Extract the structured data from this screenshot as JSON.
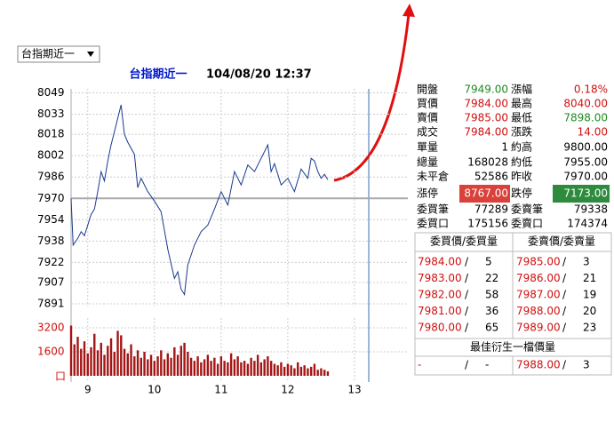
{
  "dropdown": "台指期近一",
  "header": {
    "title": "台指期近一",
    "timestamp": "104/08/20 12:37"
  },
  "chart_data": [
    {
      "type": "line",
      "color": "#1a3a8f",
      "x": [
        8.75,
        8.78,
        8.85,
        8.9,
        8.95,
        9,
        9.05,
        9.1,
        9.15,
        9.2,
        9.25,
        9.3,
        9.35,
        9.4,
        9.45,
        9.5,
        9.55,
        9.6,
        9.7,
        9.75,
        9.8,
        9.9,
        10,
        10.1,
        10.2,
        10.3,
        10.35,
        10.4,
        10.45,
        10.5,
        10.6,
        10.7,
        10.8,
        10.9,
        11,
        11.1,
        11.2,
        11.3,
        11.4,
        11.5,
        11.6,
        11.7,
        11.75,
        11.8,
        11.9,
        12,
        12.1,
        12.2,
        12.3,
        12.35,
        12.4,
        12.45,
        12.5,
        12.55,
        12.6
      ],
      "values": [
        7970,
        7935,
        7940,
        7945,
        7942,
        7950,
        7958,
        7962,
        7975,
        7990,
        7983,
        7998,
        8010,
        8020,
        8030,
        8040,
        8018,
        8012,
        8003,
        7978,
        7985,
        7975,
        7968,
        7960,
        7932,
        7910,
        7915,
        7902,
        7898,
        7920,
        7935,
        7945,
        7950,
        7962,
        7975,
        7965,
        7990,
        7980,
        7995,
        7990,
        8000,
        8010,
        7990,
        7996,
        7980,
        7985,
        7975,
        7992,
        7985,
        8000,
        7998,
        7990,
        7985,
        7988,
        7984
      ],
      "xlim": [
        8.75,
        13.8
      ],
      "xticks": [
        9,
        10,
        11,
        12,
        13
      ],
      "ylim": [
        7889,
        8052
      ],
      "yticks": [
        8049,
        8033,
        8018,
        8002,
        7986,
        7970,
        7954,
        7938,
        7922,
        7907,
        7891
      ],
      "reference": 7970,
      "grid": true
    },
    {
      "type": "bar",
      "color": "#a31515",
      "unit": "口",
      "x": [
        8.75,
        8.8,
        8.85,
        8.9,
        8.95,
        9,
        9.05,
        9.1,
        9.15,
        9.2,
        9.25,
        9.3,
        9.35,
        9.4,
        9.45,
        9.5,
        9.55,
        9.6,
        9.65,
        9.7,
        9.75,
        9.8,
        9.85,
        9.9,
        9.95,
        10,
        10.05,
        10.1,
        10.15,
        10.2,
        10.25,
        10.3,
        10.35,
        10.4,
        10.45,
        10.5,
        10.55,
        10.6,
        10.65,
        10.7,
        10.75,
        10.8,
        10.85,
        10.9,
        10.95,
        11,
        11.05,
        11.1,
        11.15,
        11.2,
        11.25,
        11.3,
        11.35,
        11.4,
        11.45,
        11.5,
        11.55,
        11.6,
        11.65,
        11.7,
        11.75,
        11.8,
        11.85,
        11.9,
        11.95,
        12,
        12.05,
        12.1,
        12.15,
        12.2,
        12.25,
        12.3,
        12.35,
        12.4,
        12.45,
        12.5,
        12.55,
        12.6
      ],
      "values": [
        3350,
        2100,
        2600,
        1800,
        2300,
        1500,
        1900,
        2800,
        1700,
        2200,
        1400,
        2000,
        2500,
        1600,
        3000,
        2700,
        1800,
        1500,
        2100,
        1300,
        1700,
        1200,
        1600,
        1100,
        1400,
        1000,
        1300,
        1700,
        1100,
        1500,
        1200,
        1900,
        1400,
        2000,
        2200,
        1600,
        1200,
        1000,
        1300,
        900,
        1100,
        1400,
        1000,
        1200,
        800,
        1300,
        1000,
        900,
        1500,
        1100,
        1300,
        900,
        1000,
        800,
        1200,
        1000,
        1400,
        900,
        1100,
        1300,
        1000,
        800,
        700,
        900,
        600,
        800,
        700,
        500,
        900,
        600,
        700,
        500,
        600,
        800,
        400,
        500,
        400,
        300
      ],
      "xlim": [
        8.75,
        13.8
      ],
      "xticks": [
        9,
        10,
        11,
        12,
        13
      ],
      "ylim": [
        0,
        3850
      ],
      "yticks": [
        3200,
        1600
      ]
    }
  ],
  "quote": {
    "rows": [
      [
        "開盤",
        "7949.00",
        "漲幅",
        "0.18%"
      ],
      [
        "買價",
        "7984.00",
        "最高",
        "8040.00"
      ],
      [
        "賣價",
        "7985.00",
        "最低",
        "7898.00"
      ],
      [
        "成交",
        "7984.00",
        "漲跌",
        "14.00"
      ],
      [
        "單量",
        "1",
        "約高",
        "9800.00"
      ],
      [
        "總量",
        "168028",
        "約低",
        "7955.00"
      ],
      [
        "未平倉",
        "52586",
        "昨收",
        "7970.00"
      ],
      [
        "漲停",
        "8767.00",
        "跌停",
        "7173.00"
      ],
      [
        "委買筆",
        "77289",
        "委賣筆",
        "79338"
      ],
      [
        "委買口",
        "175156",
        "委賣口",
        "174374"
      ]
    ]
  },
  "order_book": {
    "headers": [
      "委買價/委買量",
      "委賣價/委賣量"
    ],
    "separator": "/",
    "rows": [
      [
        "7984.00",
        "5",
        "7985.00",
        "3"
      ],
      [
        "7983.00",
        "22",
        "7986.00",
        "21"
      ],
      [
        "7982.00",
        "58",
        "7987.00",
        "19"
      ],
      [
        "7981.00",
        "36",
        "7988.00",
        "20"
      ],
      [
        "7980.00",
        "65",
        "7989.00",
        "23"
      ]
    ],
    "best_title": "最佳衍生一檔價量",
    "best": [
      "-",
      "-",
      "7988.00",
      "3"
    ]
  }
}
